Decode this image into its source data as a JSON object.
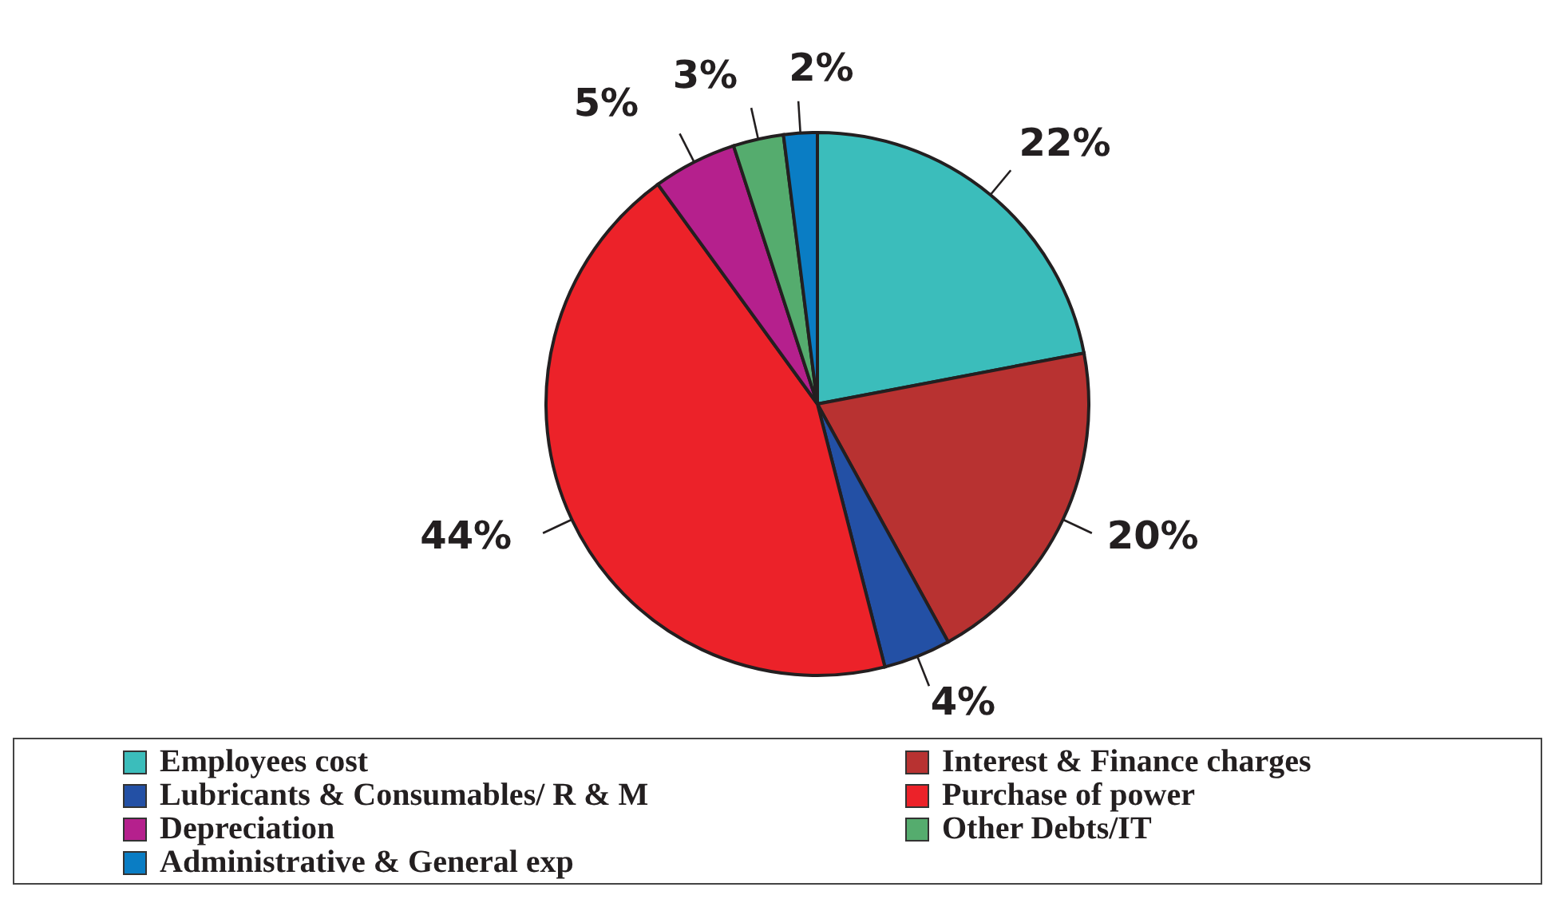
{
  "chart_data": {
    "type": "pie",
    "categories": [
      "Employees cost",
      "Interest & Finance charges",
      "Lubricants & Consumables/ R & M",
      "Purchase of power",
      "Depreciation",
      "Other Debts/IT",
      "Administrative & General exp"
    ],
    "values": [
      22,
      20,
      4,
      44,
      5,
      3,
      2
    ],
    "value_labels": [
      "22%",
      "20%",
      "4%",
      "44%",
      "5%",
      "3%",
      "2%"
    ],
    "colors": [
      "#3bbdbb",
      "#b83231",
      "#2350a5",
      "#ec2229",
      "#b5208d",
      "#55ac6e",
      "#0a7dc4"
    ],
    "legend": "bottom"
  }
}
